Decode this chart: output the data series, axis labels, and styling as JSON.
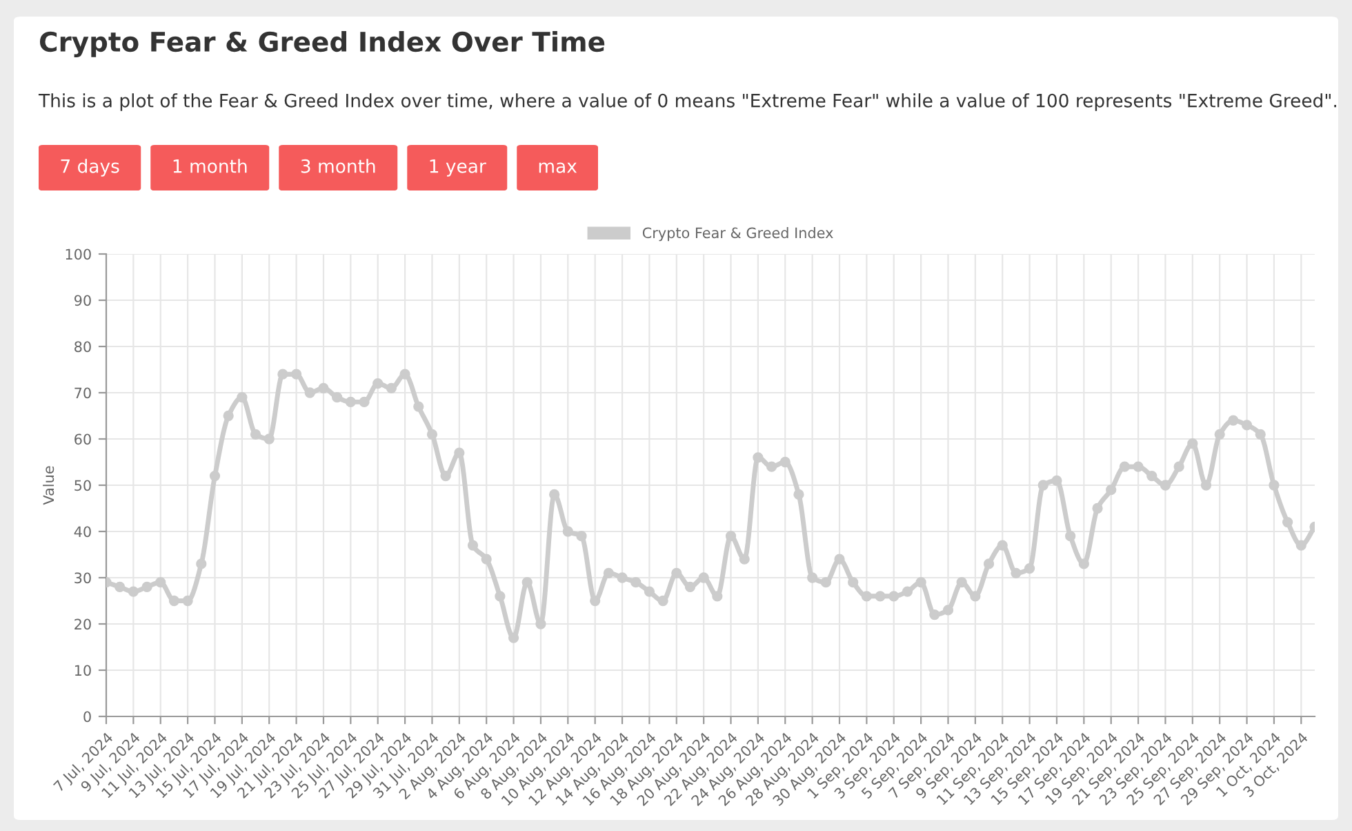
{
  "chart_data": {
    "type": "line",
    "title": "Crypto Fear & Greed Index Over Time",
    "subtitle": "This is a plot of the Fear & Greed Index over time, where a value of 0 means \"Extreme Fear\" while a value of 100 represents \"Extreme Greed\".",
    "annotations": [
      "7 days",
      "1 month",
      "3 month",
      "1 year",
      "max"
    ],
    "ylabel": "Value",
    "categories": [
      "7 Jul, 2024",
      null,
      "9 Jul, 2024",
      null,
      "11 Jul, 2024",
      null,
      "13 Jul, 2024",
      null,
      "15 Jul, 2024",
      null,
      "17 Jul, 2024",
      null,
      "19 Jul, 2024",
      null,
      "21 Jul, 2024",
      null,
      "23 Jul, 2024",
      null,
      "25 Jul, 2024",
      null,
      "27 Jul, 2024",
      null,
      "29 Jul, 2024",
      null,
      "31 Jul, 2024",
      null,
      "2 Aug, 2024",
      null,
      "4 Aug, 2024",
      null,
      "6 Aug, 2024",
      null,
      "8 Aug, 2024",
      null,
      "10 Aug, 2024",
      null,
      "12 Aug, 2024",
      null,
      "14 Aug, 2024",
      null,
      "16 Aug, 2024",
      null,
      "18 Aug, 2024",
      null,
      "20 Aug, 2024",
      null,
      "22 Aug, 2024",
      null,
      "24 Aug, 2024",
      null,
      "26 Aug, 2024",
      null,
      "28 Aug, 2024",
      null,
      "30 Aug, 2024",
      null,
      "1 Sep, 2024",
      null,
      "3 Sep, 2024",
      null,
      "5 Sep, 2024",
      null,
      "7 Sep, 2024",
      null,
      "9 Sep, 2024",
      null,
      "11 Sep, 2024",
      null,
      "13 Sep, 2024",
      null,
      "15 Sep, 2024",
      null,
      "17 Sep, 2024",
      null,
      "19 Sep, 2024",
      null,
      "21 Sep, 2024",
      null,
      "23 Sep, 2024",
      null,
      "25 Sep, 2024",
      null,
      "27 Sep, 2024",
      null,
      "29 Sep, 2024",
      null,
      "1 Oct, 2024",
      null,
      "3 Oct, 2024",
      null
    ],
    "series": [
      {
        "name": "Crypto Fear & Greed Index",
        "color": "#cccccc",
        "values": [
          29,
          28,
          27,
          28,
          29,
          25,
          25,
          33,
          52,
          65,
          69,
          61,
          60,
          74,
          74,
          70,
          71,
          69,
          68,
          68,
          72,
          71,
          74,
          67,
          61,
          52,
          57,
          37,
          34,
          26,
          17,
          29,
          20,
          48,
          40,
          39,
          25,
          31,
          30,
          29,
          27,
          25,
          31,
          28,
          30,
          26,
          39,
          34,
          56,
          54,
          55,
          48,
          30,
          29,
          34,
          29,
          26,
          26,
          26,
          27,
          29,
          22,
          23,
          29,
          26,
          33,
          37,
          31,
          32,
          50,
          51,
          39,
          33,
          45,
          49,
          54,
          54,
          52,
          50,
          54,
          59,
          50,
          61,
          64,
          63,
          61,
          50,
          42,
          37,
          41
        ]
      }
    ],
    "ylim": [
      0,
      100
    ],
    "yticks": [
      0,
      10,
      20,
      30,
      40,
      50,
      60,
      70,
      80,
      90,
      100
    ],
    "grid": true,
    "legend": "top",
    "marker": "circle",
    "line_style": "solid"
  }
}
